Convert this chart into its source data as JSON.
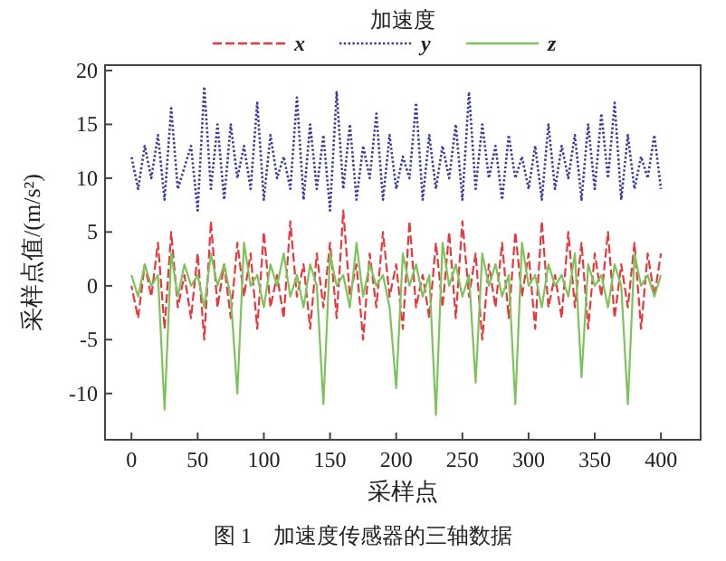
{
  "chart_data": {
    "type": "line",
    "title": "加速度",
    "xlabel": "采样点",
    "ylabel": "采样点值/(m/s²)",
    "annotations": [
      "图 1　加速度传感器的三轴数据"
    ],
    "x": [
      0,
      5,
      10,
      15,
      20,
      25,
      30,
      35,
      40,
      45,
      50,
      55,
      60,
      65,
      70,
      75,
      80,
      85,
      90,
      95,
      100,
      105,
      110,
      115,
      120,
      125,
      130,
      135,
      140,
      145,
      150,
      155,
      160,
      165,
      170,
      175,
      180,
      185,
      190,
      195,
      200,
      205,
      210,
      215,
      220,
      225,
      230,
      235,
      240,
      245,
      250,
      255,
      260,
      265,
      270,
      275,
      280,
      285,
      290,
      295,
      300,
      305,
      310,
      315,
      320,
      325,
      330,
      335,
      340,
      345,
      350,
      355,
      360,
      365,
      370,
      375,
      380,
      385,
      390,
      395,
      400
    ],
    "series": [
      {
        "name": "x",
        "color": "#e8383d",
        "line_style": "dashed",
        "values": [
          0,
          -3,
          2,
          -1,
          4,
          -4,
          5,
          -2,
          1,
          -3,
          3,
          -5,
          6,
          -2,
          2,
          -3,
          4,
          -1,
          3,
          -4,
          5,
          -2,
          1,
          -3,
          6,
          -1,
          2,
          -4,
          3,
          -2,
          4,
          -3,
          7,
          -1,
          2,
          -5,
          3,
          -2,
          5,
          -1,
          2,
          -4,
          6,
          -2,
          1,
          -3,
          4,
          -2,
          5,
          -3,
          6,
          -1,
          3,
          -5,
          2,
          -2,
          4,
          -3,
          5,
          -1,
          3,
          -4,
          6,
          -2,
          1,
          -3,
          5,
          -2,
          4,
          -4,
          3,
          -1,
          5,
          -3,
          2,
          -2,
          4,
          -4,
          3,
          -1,
          3
        ]
      },
      {
        "name": "y",
        "color": "#3a3a9a",
        "line_style": "dotted",
        "values": [
          12,
          9,
          13,
          10,
          14,
          8,
          16.5,
          9,
          11,
          13,
          7,
          18.5,
          9,
          15,
          8,
          15,
          10,
          13,
          9,
          17,
          8,
          14,
          10,
          12,
          9,
          17.5,
          8,
          15,
          9,
          14,
          7,
          18,
          9,
          15,
          8,
          13,
          10,
          16,
          8,
          14,
          9,
          12,
          10,
          17,
          8,
          14,
          9,
          13,
          10,
          15,
          8,
          18,
          9,
          15,
          10,
          13,
          8,
          14,
          10,
          12,
          9,
          13,
          8,
          15,
          9,
          13,
          10,
          14,
          8,
          15,
          9,
          16,
          10,
          17,
          8,
          14,
          9,
          12,
          10,
          14,
          9
        ]
      },
      {
        "name": "z",
        "color": "#7cc35a",
        "line_style": "solid",
        "values": [
          1,
          -1,
          2,
          0,
          1,
          -11.5,
          3,
          -1,
          2,
          0,
          1,
          -2,
          3,
          0,
          2,
          -1,
          -10,
          4,
          0,
          1,
          -2,
          2,
          0,
          3,
          -1,
          1,
          -2,
          2,
          0,
          -11,
          3,
          0,
          1,
          -2,
          4,
          -1,
          2,
          0,
          1,
          -2,
          -9.5,
          3,
          0,
          2,
          -1,
          1,
          -12,
          4,
          0,
          2,
          -1,
          1,
          -9,
          3,
          0,
          2,
          -1,
          1,
          -11,
          4,
          0,
          1,
          -2,
          2,
          0,
          1,
          -1,
          3,
          -8.5,
          2,
          0,
          1,
          -2,
          2,
          0,
          -11,
          3,
          0,
          1,
          -1,
          1
        ]
      }
    ],
    "xlim": [
      -20,
      430
    ],
    "ylim": [
      -14.3,
      20.5
    ],
    "xticks": [
      0,
      50,
      100,
      150,
      200,
      250,
      300,
      350,
      400
    ],
    "yticks": [
      -10,
      -5,
      0,
      5,
      10,
      15,
      20
    ],
    "legend": "top",
    "marker": "none",
    "grid": false
  }
}
